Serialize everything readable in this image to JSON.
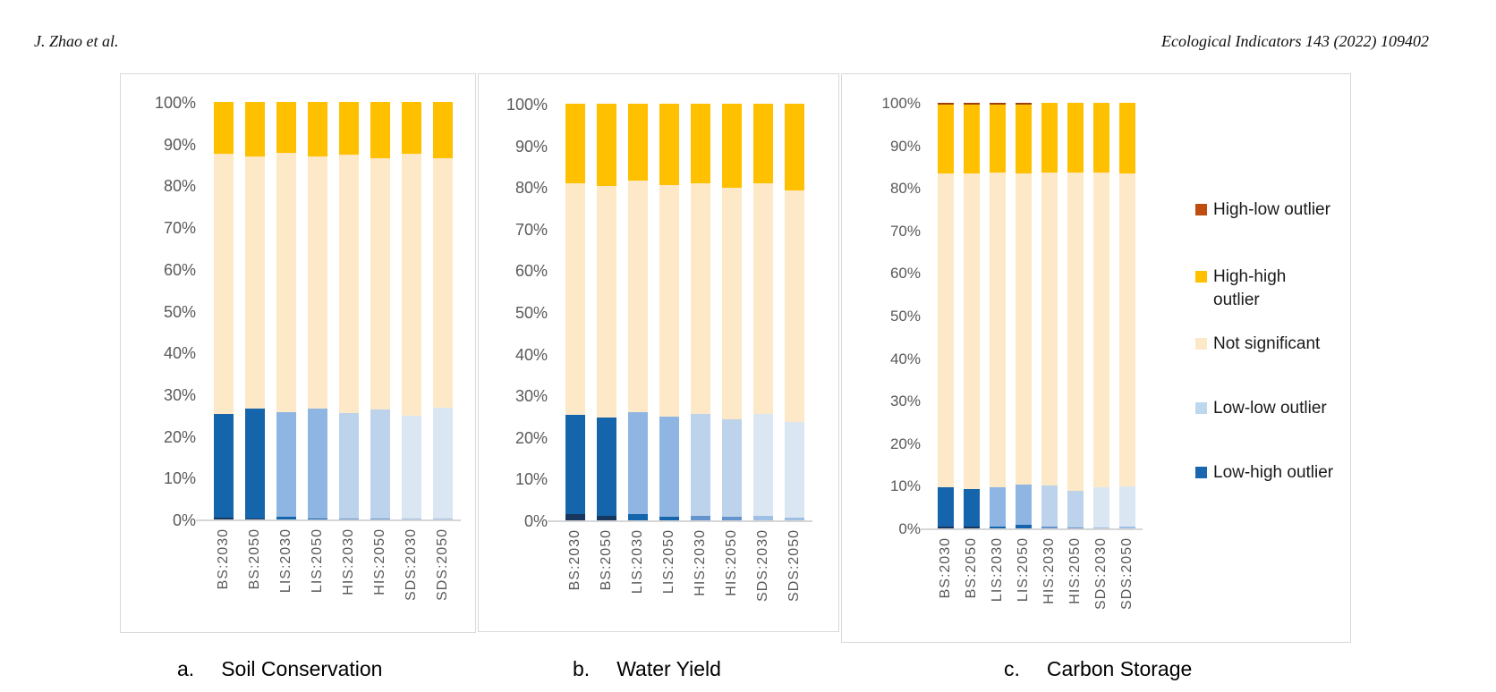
{
  "page": {
    "background": "#FFFFFF"
  },
  "header": {
    "left": "J. Zhao et al.",
    "right": "Ecological Indicators 143 (2022) 109402"
  },
  "legend": {
    "position": "right",
    "items": [
      {
        "label": "High-low outlier",
        "color": "#BE4E10"
      },
      {
        "label": "High-high outlier",
        "color": "#FFC000"
      },
      {
        "label": "Not significant",
        "color": "#FDE9C7"
      },
      {
        "label": "Low-low outlier",
        "color": "#BDD7EE"
      },
      {
        "label": "Low-high outlier",
        "color": "#1A66AF"
      }
    ]
  },
  "chart_data": [
    {
      "type": "bar",
      "stacked": true,
      "units": "percent",
      "caption_label": "a.",
      "title": "Soil Conservation",
      "categories": [
        "BS:2030",
        "BS:2050",
        "LIS:2030",
        "LIS:2050",
        "HIS:2030",
        "HIS:2050",
        "SDS:2030",
        "SDS:2050"
      ],
      "yticks": [
        "0%",
        "10%",
        "20%",
        "30%",
        "40%",
        "50%",
        "60%",
        "70%",
        "80%",
        "90%",
        "100%"
      ],
      "ylim": [
        0,
        100
      ],
      "grid": false,
      "series": [
        {
          "name": "Low-high outlier",
          "values": [
            0.4,
            0.3,
            0.6,
            0.2,
            0.3,
            0.2,
            0.3,
            0.2
          ],
          "colors": [
            "#17375E",
            "#17375E",
            "#1565AC",
            "#1565AC",
            "#6593CE",
            "#6593CE",
            "#9FBFE5",
            "#9FBFE5"
          ]
        },
        {
          "name": "Low-low outlier",
          "values": [
            24.9,
            26.3,
            25.1,
            26.4,
            25.2,
            26.1,
            24.5,
            26.6
          ],
          "colors": [
            "#1565AC",
            "#1565AC",
            "#8FB6E3",
            "#8FB6E3",
            "#BDD3EB",
            "#BDD3EB",
            "#DBE6F3",
            "#DBE6F3"
          ]
        },
        {
          "name": "Not significant",
          "values": [
            62.3,
            60.4,
            62.2,
            60.4,
            61.8,
            60.2,
            62.8,
            59.8
          ],
          "color": "#FDE9C7"
        },
        {
          "name": "High-high outlier",
          "values": [
            12.4,
            13.0,
            12.1,
            13.0,
            12.7,
            13.5,
            12.4,
            13.4
          ],
          "color": "#FFC000"
        },
        {
          "name": "High-low outlier",
          "values": [
            0,
            0,
            0,
            0,
            0,
            0,
            0,
            0
          ],
          "color": "#9E400C"
        }
      ]
    },
    {
      "type": "bar",
      "stacked": true,
      "units": "percent",
      "caption_label": "b.",
      "title": "Water Yield",
      "categories": [
        "BS:2030",
        "BS:2050",
        "LIS:2030",
        "LIS:2050",
        "HIS:2030",
        "HIS:2050",
        "SDS:2030",
        "SDS:2050"
      ],
      "yticks": [
        "0%",
        "10%",
        "20%",
        "30%",
        "40%",
        "50%",
        "60%",
        "70%",
        "80%",
        "90%",
        "100%"
      ],
      "ylim": [
        0,
        100
      ],
      "grid": false,
      "series": [
        {
          "name": "Low-high outlier",
          "values": [
            1.6,
            1.0,
            1.5,
            0.9,
            1.1,
            0.8,
            1.0,
            0.6
          ],
          "colors": [
            "#17375E",
            "#17375E",
            "#1565AC",
            "#1565AC",
            "#6593CE",
            "#6593CE",
            "#9FBFE5",
            "#9FBFE5"
          ]
        },
        {
          "name": "Low-low outlier",
          "values": [
            23.8,
            23.7,
            24.4,
            23.9,
            24.4,
            23.5,
            24.6,
            23.1
          ],
          "colors": [
            "#1565AC",
            "#1565AC",
            "#8FB6E3",
            "#8FB6E3",
            "#BDD3EB",
            "#BDD3EB",
            "#DBE6F3",
            "#DBE6F3"
          ]
        },
        {
          "name": "Not significant",
          "values": [
            55.6,
            55.5,
            55.7,
            55.7,
            55.5,
            55.5,
            55.3,
            55.5
          ],
          "color": "#FDE9C7"
        },
        {
          "name": "High-high outlier",
          "values": [
            19.0,
            19.8,
            18.4,
            19.5,
            19.0,
            20.2,
            19.1,
            20.8
          ],
          "color": "#FFC000"
        },
        {
          "name": "High-low outlier",
          "values": [
            0,
            0,
            0,
            0,
            0,
            0,
            0,
            0
          ],
          "color": "#9E400C"
        }
      ]
    },
    {
      "type": "bar",
      "stacked": true,
      "units": "percent",
      "caption_label": "c.",
      "title": "Carbon Storage",
      "categories": [
        "BS:2030",
        "BS:2050",
        "LIS:2030",
        "LIS:2050",
        "HIS:2030",
        "HIS:2050",
        "SDS:2030",
        "SDS:2050"
      ],
      "yticks": [
        "0%",
        "10%",
        "20%",
        "30%",
        "40%",
        "50%",
        "60%",
        "70%",
        "80%",
        "90%",
        "100%"
      ],
      "ylim": [
        0,
        100
      ],
      "grid": false,
      "series": [
        {
          "name": "Low-high outlier",
          "values": [
            0.5,
            0.5,
            0.5,
            0.8,
            0.4,
            0.3,
            0.3,
            0.4
          ],
          "colors": [
            "#17375E",
            "#17375E",
            "#1565AC",
            "#1565AC",
            "#6593CE",
            "#6593CE",
            "#9FBFE5",
            "#9FBFE5"
          ]
        },
        {
          "name": "Low-low outlier",
          "values": [
            9.1,
            8.7,
            9.2,
            9.5,
            9.7,
            8.6,
            9.4,
            9.4
          ],
          "colors": [
            "#1565AC",
            "#1565AC",
            "#8FB6E3",
            "#8FB6E3",
            "#BDD3EB",
            "#BDD3EB",
            "#DBE6F3",
            "#DBE6F3"
          ]
        },
        {
          "name": "Not significant",
          "values": [
            73.9,
            74.2,
            73.9,
            73.2,
            73.5,
            74.7,
            73.9,
            73.7
          ],
          "color": "#FDE9C7"
        },
        {
          "name": "High-high outlier",
          "values": [
            16.1,
            16.2,
            16.0,
            16.1,
            16.4,
            16.4,
            16.4,
            16.5
          ],
          "color": "#FFC000"
        },
        {
          "name": "High-low outlier",
          "values": [
            0.4,
            0.4,
            0.4,
            0.4,
            0,
            0,
            0,
            0
          ],
          "color": "#9E400C"
        }
      ]
    }
  ]
}
